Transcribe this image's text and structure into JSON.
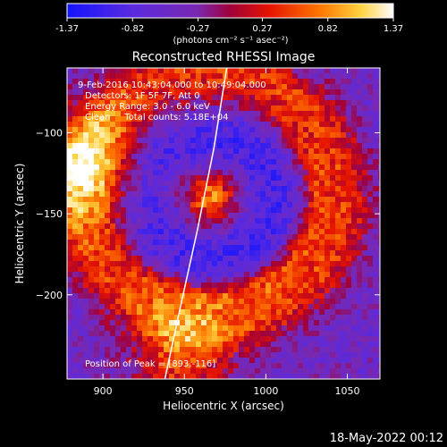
{
  "chart_data": {
    "type": "heatmap",
    "title": "Reconstructed RHESSI Image",
    "xlabel": "Heliocentric X (arcsec)",
    "ylabel": "Heliocentric Y (arcsec)",
    "xlim": [
      878,
      1070
    ],
    "ylim": [
      -252,
      -60
    ],
    "x_ticks": [
      900,
      950,
      1000,
      1050
    ],
    "y_ticks": [
      -100,
      -150,
      -200
    ],
    "colorbar": {
      "range": [
        -1.37,
        1.37
      ],
      "tick_values": [
        -1.37,
        -0.82,
        -0.27,
        0.27,
        0.82,
        1.37
      ],
      "tick_labels": [
        "-1.37",
        "-0.82",
        "-0.27",
        "0.27",
        "0.82",
        "1.37"
      ],
      "unit_label": "(photons cm⁻² s⁻¹ asec⁻²)"
    },
    "annotations": [
      "9-Feb-2016 10:43:04.000 to 10:49:04.000",
      "Detectors: 1F 5F 7F, Att 0",
      "Energy Range: 3.0 - 6.0 keV",
      "Clean     Total counts: 5.18E+04"
    ],
    "peak": {
      "label": "Position of Peak = [893,-116]",
      "x": 893,
      "y": -116
    },
    "limb_points": [
      [
        976,
        -60
      ],
      [
        968,
        -110
      ],
      [
        958,
        -160
      ],
      [
        947,
        -210
      ],
      [
        938,
        -252
      ]
    ]
  },
  "footer_timestamp": "18-May-2022 00:12"
}
